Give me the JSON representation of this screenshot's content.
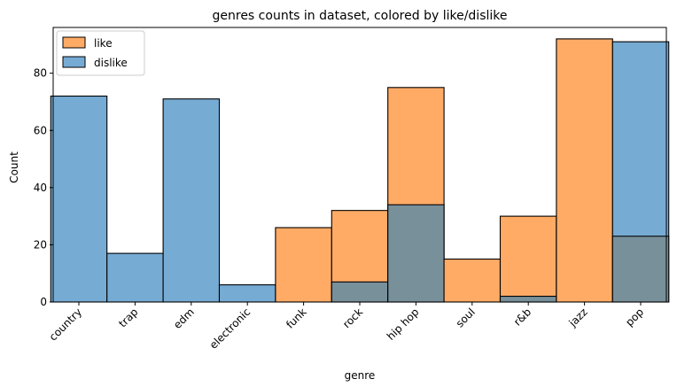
{
  "chart_data": {
    "type": "bar",
    "title": "genres counts in dataset, colored by like/dislike",
    "xlabel": "genre",
    "ylabel": "Count",
    "ylim": [
      0,
      96
    ],
    "yticks": [
      0,
      20,
      40,
      60,
      80
    ],
    "categories": [
      "country",
      "trap",
      "edm",
      "electronic",
      "funk",
      "rock",
      "hip hop",
      "soul",
      "r&b",
      "jazz",
      "pop"
    ],
    "series": [
      {
        "name": "like",
        "color": "#ffab66",
        "values": [
          0,
          0,
          0,
          0,
          26,
          32,
          75,
          15,
          30,
          92,
          23
        ]
      },
      {
        "name": "dislike",
        "color": "#76abd4",
        "values": [
          72,
          17,
          71,
          6,
          0,
          7,
          34,
          0,
          2,
          0,
          91
        ]
      }
    ],
    "overlap_color": "#78909a",
    "legend_position": "upper-left",
    "grid": false
  }
}
